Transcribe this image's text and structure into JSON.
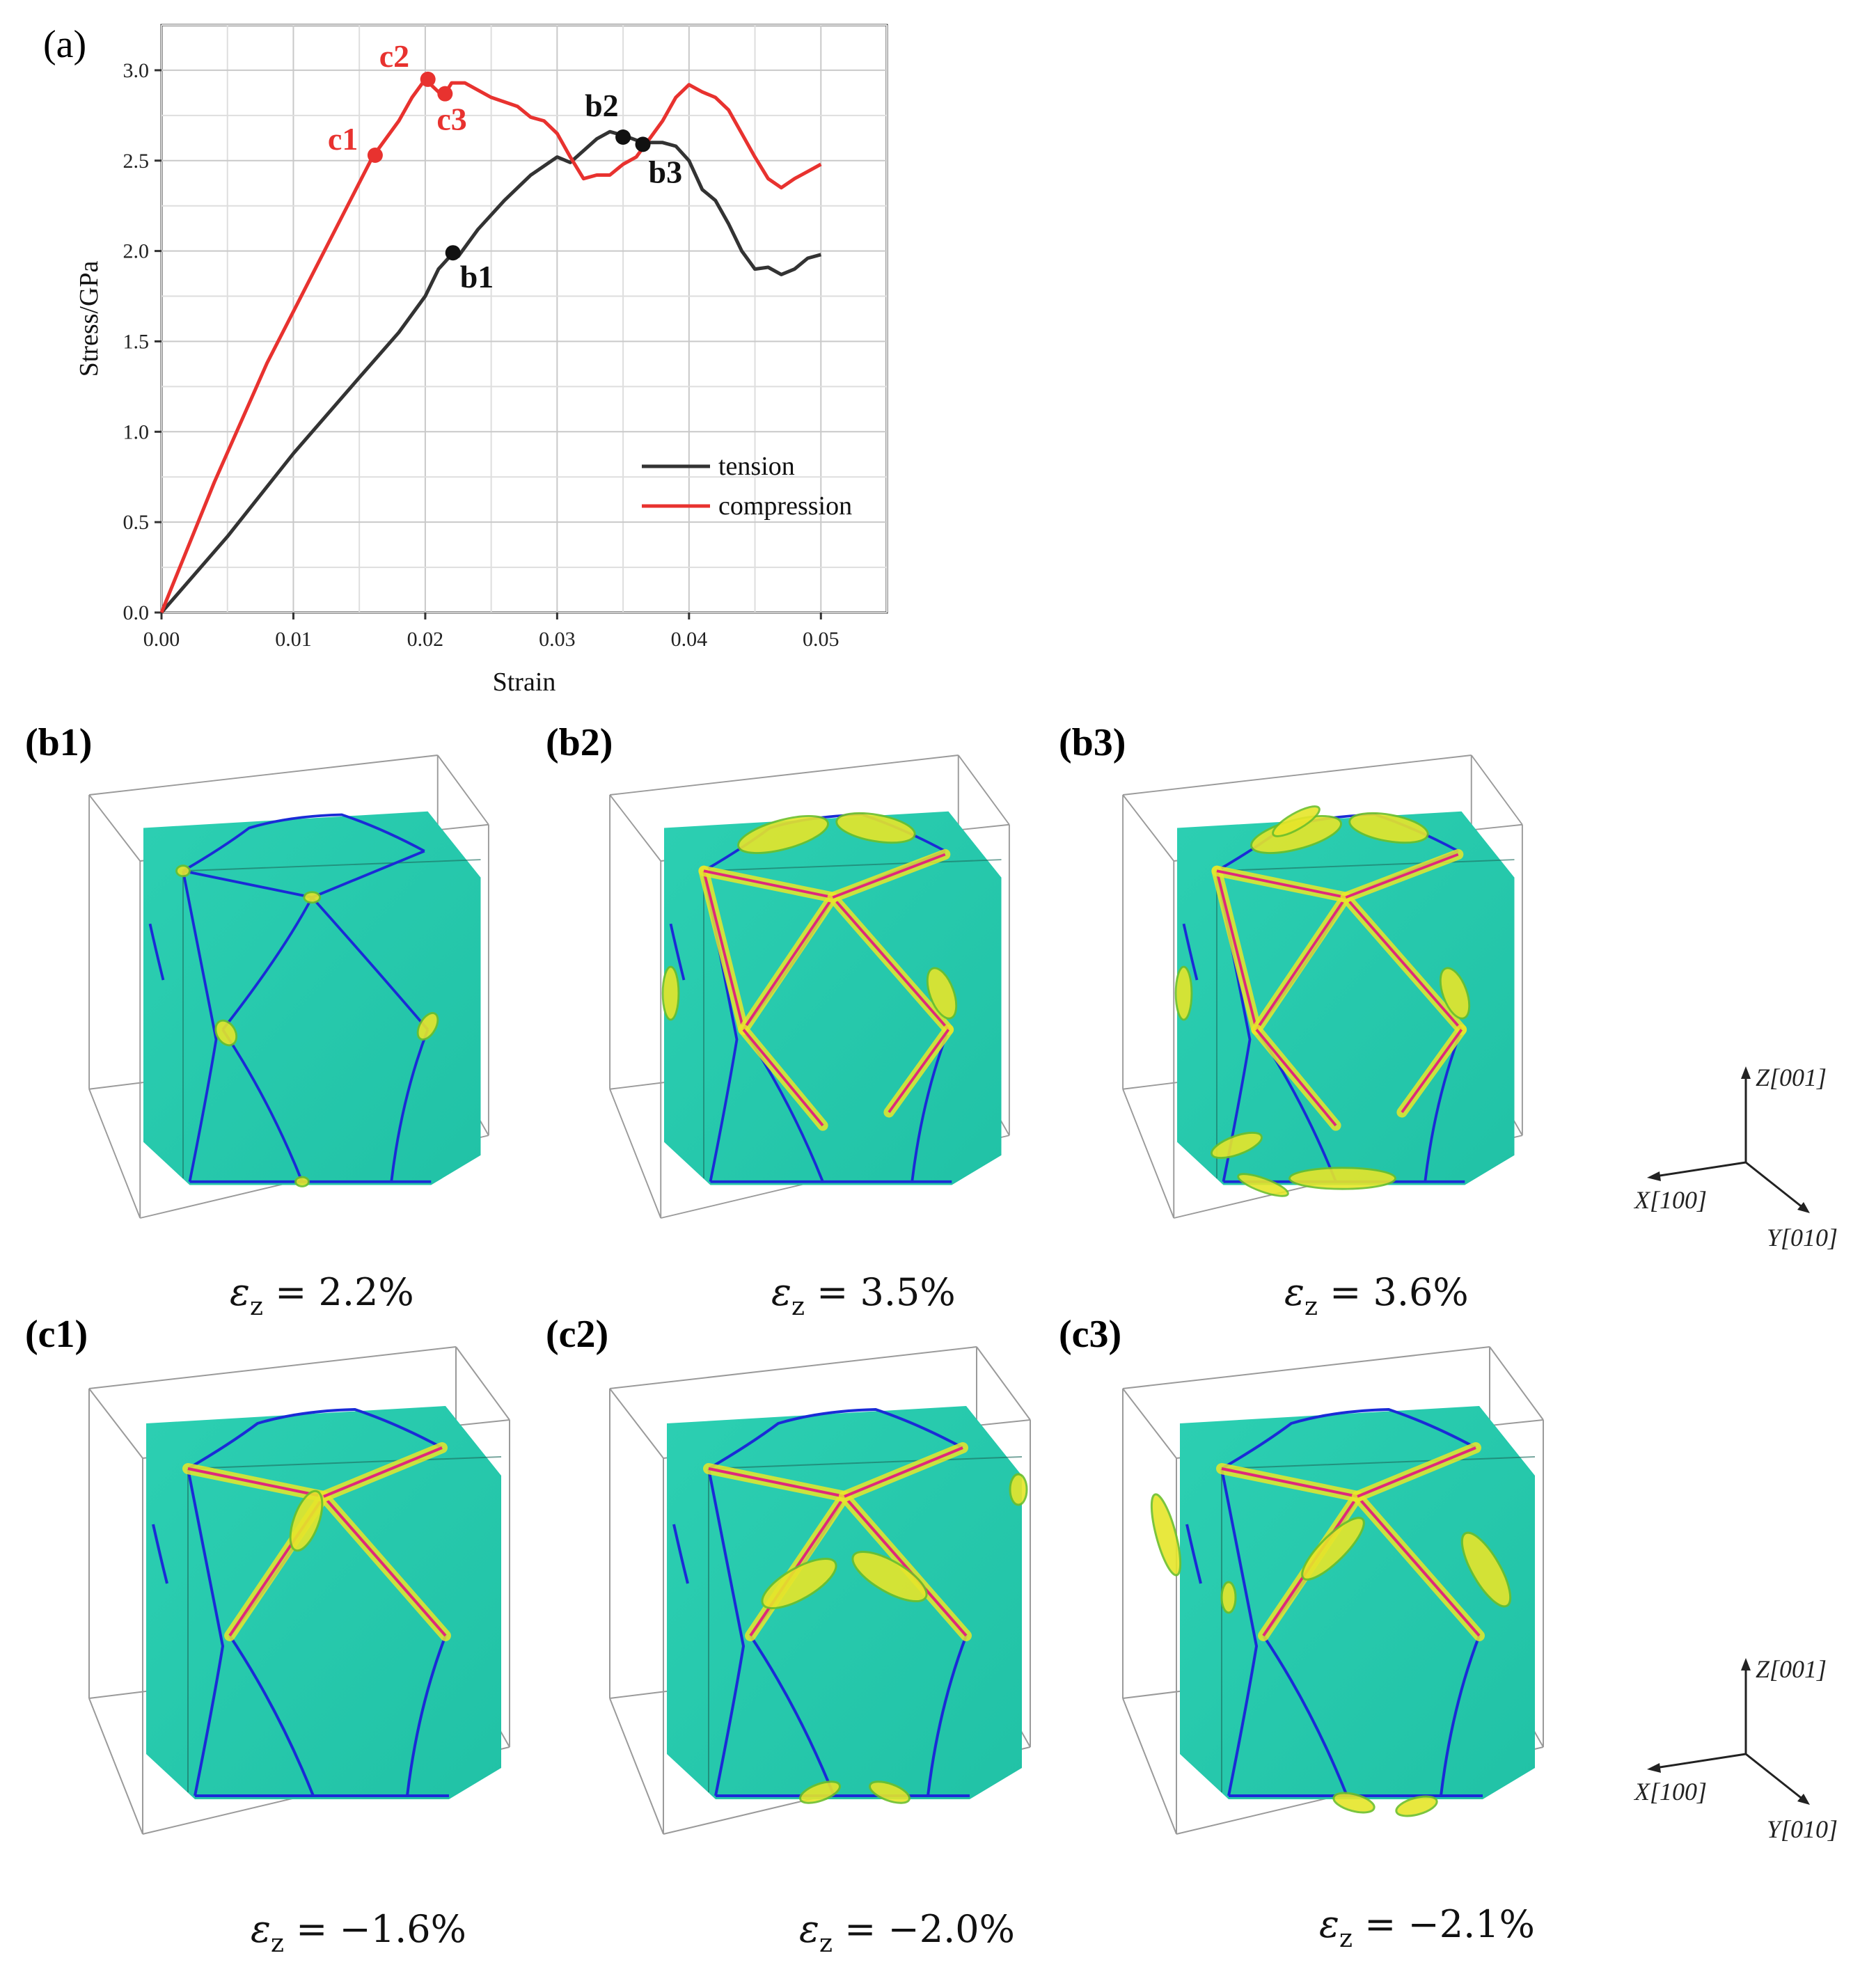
{
  "panel_a_label": "(a)",
  "chart_data": {
    "type": "line",
    "xlabel": "Strain",
    "ylabel": "Stress/GPa",
    "xlim": [
      0,
      0.055
    ],
    "ylim": [
      0,
      3.25
    ],
    "x_ticks": [
      "0.00",
      "0.01",
      "0.02",
      "0.03",
      "0.04",
      "0.05"
    ],
    "y_ticks": [
      "0.0",
      "0.5",
      "1.0",
      "1.5",
      "2.0",
      "2.5",
      "3.0"
    ],
    "grid": true,
    "legend_position": "bottom-right",
    "series": [
      {
        "name": "tension",
        "color": "#333333",
        "points": [
          [
            0,
            0
          ],
          [
            0.005,
            0.42
          ],
          [
            0.01,
            0.88
          ],
          [
            0.015,
            1.3
          ],
          [
            0.018,
            1.55
          ],
          [
            0.02,
            1.75
          ],
          [
            0.021,
            1.9
          ],
          [
            0.022,
            1.98
          ],
          [
            0.0225,
            1.97
          ],
          [
            0.024,
            2.12
          ],
          [
            0.026,
            2.28
          ],
          [
            0.028,
            2.42
          ],
          [
            0.03,
            2.52
          ],
          [
            0.031,
            2.49
          ],
          [
            0.033,
            2.62
          ],
          [
            0.034,
            2.66
          ],
          [
            0.035,
            2.64
          ],
          [
            0.0365,
            2.6
          ],
          [
            0.038,
            2.6
          ],
          [
            0.039,
            2.58
          ],
          [
            0.04,
            2.5
          ],
          [
            0.041,
            2.34
          ],
          [
            0.042,
            2.28
          ],
          [
            0.043,
            2.15
          ],
          [
            0.044,
            2.0
          ],
          [
            0.045,
            1.9
          ],
          [
            0.046,
            1.91
          ],
          [
            0.047,
            1.87
          ],
          [
            0.048,
            1.9
          ],
          [
            0.049,
            1.96
          ],
          [
            0.05,
            1.98
          ]
        ]
      },
      {
        "name": "compression",
        "color": "#e8322f",
        "points": [
          [
            0,
            0
          ],
          [
            0.004,
            0.72
          ],
          [
            0.008,
            1.38
          ],
          [
            0.012,
            1.95
          ],
          [
            0.016,
            2.52
          ],
          [
            0.018,
            2.72
          ],
          [
            0.019,
            2.85
          ],
          [
            0.02,
            2.95
          ],
          [
            0.021,
            2.88
          ],
          [
            0.0215,
            2.87
          ],
          [
            0.022,
            2.93
          ],
          [
            0.023,
            2.93
          ],
          [
            0.025,
            2.85
          ],
          [
            0.027,
            2.8
          ],
          [
            0.028,
            2.74
          ],
          [
            0.029,
            2.72
          ],
          [
            0.03,
            2.65
          ],
          [
            0.031,
            2.52
          ],
          [
            0.032,
            2.4
          ],
          [
            0.033,
            2.42
          ],
          [
            0.034,
            2.42
          ],
          [
            0.035,
            2.48
          ],
          [
            0.036,
            2.52
          ],
          [
            0.037,
            2.62
          ],
          [
            0.038,
            2.72
          ],
          [
            0.039,
            2.85
          ],
          [
            0.04,
            2.92
          ],
          [
            0.041,
            2.88
          ],
          [
            0.042,
            2.85
          ],
          [
            0.043,
            2.78
          ],
          [
            0.044,
            2.65
          ],
          [
            0.045,
            2.52
          ],
          [
            0.046,
            2.4
          ],
          [
            0.047,
            2.35
          ],
          [
            0.048,
            2.4
          ],
          [
            0.049,
            2.44
          ],
          [
            0.05,
            2.48
          ]
        ]
      }
    ],
    "markers": [
      {
        "label": "b1",
        "x": 0.0221,
        "y": 1.99,
        "color": "#111111"
      },
      {
        "label": "b2",
        "x": 0.035,
        "y": 2.63,
        "color": "#111111"
      },
      {
        "label": "b3",
        "x": 0.0365,
        "y": 2.59,
        "color": "#111111"
      },
      {
        "label": "c1",
        "x": 0.0162,
        "y": 2.53,
        "color": "#e8322f"
      },
      {
        "label": "c2",
        "x": 0.0202,
        "y": 2.95,
        "color": "#e8322f"
      },
      {
        "label": "c3",
        "x": 0.0215,
        "y": 2.87,
        "color": "#e8322f"
      }
    ]
  },
  "panels": {
    "b1": {
      "label": "(b1)",
      "strain": "ε_z = 2.2%"
    },
    "b2": {
      "label": "(b2)",
      "strain": "ε_z = 3.5%"
    },
    "b3": {
      "label": "(b3)",
      "strain": "ε_z = 3.6%"
    },
    "c1": {
      "label": "(c1)",
      "strain": "ε_z = −1.6%"
    },
    "c2": {
      "label": "(c2)",
      "strain": "ε_z = −2.0%"
    },
    "c3": {
      "label": "(c3)",
      "strain": "ε_z = −2.1%"
    }
  },
  "strain_caption_parts": {
    "b1": {
      "sym": "ε",
      "sub": "z",
      "val": " = 2.2%"
    },
    "b2": {
      "sym": "ε",
      "sub": "z",
      "val": " = 3.5%"
    },
    "b3": {
      "sym": "ε",
      "sub": "z",
      "val": " = 3.6%"
    },
    "c1": {
      "sym": "ε",
      "sub": "z",
      "val": " = −1.6%"
    },
    "c2": {
      "sym": "ε",
      "sub": "z",
      "val": " = −2.0%"
    },
    "c3": {
      "sym": "ε",
      "sub": "z",
      "val": " = −2.1%"
    }
  },
  "axes_triad": {
    "z": "Z[001]",
    "x": "X[100]",
    "y": "Y[010]"
  },
  "colors": {
    "cube": "#26c9ad",
    "boundary": "#1a2bd6",
    "shear": "#e6e62a",
    "twin": "#e0287a"
  }
}
